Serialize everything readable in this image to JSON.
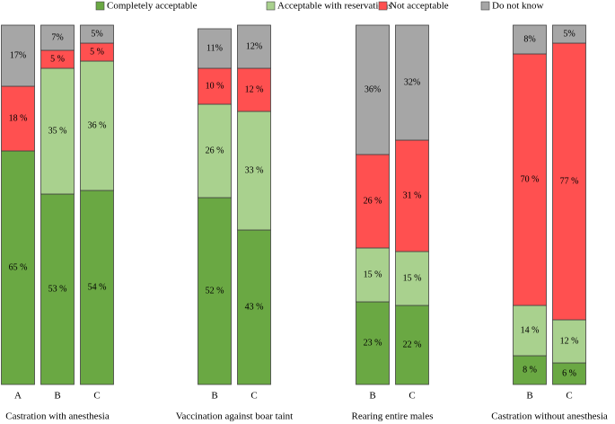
{
  "chart_data": {
    "type": "stacked-bar",
    "groups": [
      {
        "label": "Castration with anesthesia",
        "categories": [
          "A",
          "B",
          "C"
        ]
      },
      {
        "label": "Vaccination against boar taint",
        "categories": [
          "B",
          "C"
        ]
      },
      {
        "label": "Rearing entire males",
        "categories": [
          "B",
          "C"
        ]
      },
      {
        "label": "Castration without anesthesia",
        "categories": [
          "B",
          "C"
        ]
      }
    ],
    "ylim": [
      0,
      100
    ],
    "series": [
      {
        "name": "Completely acceptable",
        "color": "#6aa843",
        "values": [
          65,
          53,
          54,
          52,
          43,
          23,
          22,
          8,
          6
        ],
        "value_labels": [
          "65 %",
          "53 %",
          "54 %",
          "52 %",
          "43 %",
          "23 %",
          "22 %",
          "8 %",
          "6 %"
        ]
      },
      {
        "name": "Acceptable with reservations",
        "color": "#a9d18e",
        "values": [
          null,
          35,
          36,
          26,
          33,
          15,
          15,
          14,
          12
        ],
        "value_labels": [
          null,
          "35 %",
          "36 %",
          "26 %",
          "33 %",
          "15 %",
          "15 %",
          "14 %",
          "12 %"
        ]
      },
      {
        "name": "Not acceptable",
        "color": "#ff5050",
        "values": [
          18,
          5,
          5,
          10,
          12,
          26,
          31,
          70,
          77
        ],
        "value_labels": [
          "18 %",
          "5 %",
          "5 %",
          "10 %",
          "12 %",
          "26 %",
          "31 %",
          "70 %",
          "77 %"
        ]
      },
      {
        "name": "Do not know",
        "color": "#a6a6a6",
        "values": [
          17,
          7,
          5,
          11,
          12,
          36,
          32,
          8,
          5
        ],
        "value_labels": [
          "17%",
          "7%",
          "5%",
          "11%",
          "12%",
          "36%",
          "32%",
          "8%",
          "5%"
        ]
      }
    ]
  }
}
